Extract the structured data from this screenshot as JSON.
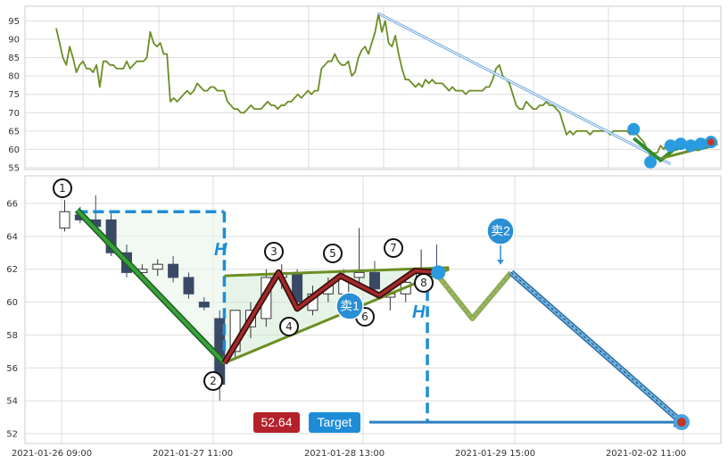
{
  "chart_data": [
    {
      "type": "line",
      "name": "overview",
      "ylim": [
        54.5,
        99
      ],
      "yticks": [
        55,
        60,
        65,
        70,
        75,
        80,
        85,
        90,
        95
      ],
      "x_range": [
        0,
        190
      ],
      "grid": true,
      "series": [
        {
          "color": "#6b8e23",
          "values": [
            93,
            89,
            85,
            83,
            88,
            85,
            81,
            83,
            84,
            82,
            82,
            81,
            83,
            77,
            84,
            84,
            83,
            83,
            82,
            82,
            82,
            84,
            82,
            83,
            84,
            84,
            84,
            85,
            92,
            89,
            88,
            89,
            86,
            86,
            73,
            74,
            73,
            74,
            75,
            76,
            75,
            76,
            78,
            77,
            76,
            76,
            77,
            77,
            76,
            76,
            76,
            73,
            72,
            71,
            71,
            70,
            70,
            71,
            72,
            71,
            71,
            71,
            72,
            73,
            72,
            72,
            71,
            72,
            72,
            73,
            73,
            74,
            75,
            74,
            75,
            76,
            75,
            76,
            76,
            82,
            83,
            84,
            84,
            86,
            84,
            83,
            83,
            84,
            80,
            81,
            85,
            87,
            88,
            86,
            89,
            92,
            97,
            92,
            95,
            89,
            88,
            91,
            86,
            82,
            79,
            79,
            78,
            77,
            78,
            77,
            79,
            78,
            79,
            78,
            78,
            78,
            77,
            76,
            77,
            76,
            76,
            76,
            75,
            76,
            76,
            76,
            76,
            76,
            77,
            77,
            79,
            82,
            83,
            80,
            79,
            78,
            75,
            72,
            71,
            71,
            73,
            72,
            71,
            71,
            72,
            72,
            73,
            72,
            72,
            71,
            70,
            67,
            64,
            65,
            64,
            65,
            65,
            65,
            65,
            64,
            65,
            65,
            65,
            65,
            65,
            64,
            65,
            65,
            65,
            65,
            65,
            64,
            65,
            64,
            63,
            62,
            60,
            58,
            59,
            59,
            61,
            60,
            62,
            62,
            62,
            61,
            62,
            62,
            62,
            61
          ]
        }
      ],
      "annotations": {
        "trend_line": {
          "start": [
            96,
            97
          ],
          "end": [
            183,
            56
          ]
        },
        "markers": [
          [
            172,
            65.5
          ],
          [
            177,
            56.5
          ],
          [
            183,
            61
          ],
          [
            186,
            61.5
          ],
          [
            189,
            61
          ],
          [
            192,
            61.5
          ],
          [
            195,
            62
          ]
        ],
        "mini_pattern": [
          [
            172,
            63
          ],
          [
            180,
            57
          ],
          [
            184,
            60
          ],
          [
            188,
            61
          ],
          [
            191,
            60
          ],
          [
            195,
            61
          ]
        ]
      }
    },
    {
      "type": "candlestick",
      "name": "detail",
      "ylim": [
        51.5,
        67.5
      ],
      "yticks": [
        52,
        54,
        56,
        58,
        60,
        62,
        64,
        66
      ],
      "x_labels": [
        "2021-01-26 09:00",
        "2021-01-27 11:00",
        "2021-01-28 13:00",
        "2021-01-29 15:00",
        "2021-02-02 11:00"
      ],
      "grid": true,
      "candles": [
        {
          "o": 64.5,
          "h": 66.2,
          "l": 64.3,
          "c": 65.5
        },
        {
          "o": 65.3,
          "h": 65.8,
          "l": 64.8,
          "c": 65.0
        },
        {
          "o": 65.0,
          "h": 66.5,
          "l": 64.5,
          "c": 64.6
        },
        {
          "o": 65.0,
          "h": 65.5,
          "l": 62.8,
          "c": 63.0
        },
        {
          "o": 63.0,
          "h": 63.5,
          "l": 61.5,
          "c": 61.8
        },
        {
          "o": 61.8,
          "h": 62.3,
          "l": 61.5,
          "c": 62.0
        },
        {
          "o": 62.0,
          "h": 62.6,
          "l": 61.6,
          "c": 62.3
        },
        {
          "o": 62.3,
          "h": 62.8,
          "l": 61.2,
          "c": 61.5
        },
        {
          "o": 61.5,
          "h": 61.8,
          "l": 60.2,
          "c": 60.5
        },
        {
          "o": 60.0,
          "h": 60.3,
          "l": 59.5,
          "c": 59.7
        },
        {
          "o": 59.0,
          "h": 59.5,
          "l": 54.0,
          "c": 55.0
        },
        {
          "o": 57.0,
          "h": 59.5,
          "l": 56.5,
          "c": 59.5
        },
        {
          "o": 58.5,
          "h": 60.0,
          "l": 57.8,
          "c": 59.5
        },
        {
          "o": 59.0,
          "h": 62.0,
          "l": 58.5,
          "c": 61.5
        },
        {
          "o": 61.5,
          "h": 62.3,
          "l": 60.8,
          "c": 61.8
        },
        {
          "o": 61.8,
          "h": 62.0,
          "l": 59.5,
          "c": 60.0
        },
        {
          "o": 59.5,
          "h": 61.0,
          "l": 59.2,
          "c": 60.5
        },
        {
          "o": 60.5,
          "h": 61.5,
          "l": 60.0,
          "c": 61.0
        },
        {
          "o": 60.5,
          "h": 62.0,
          "l": 60.2,
          "c": 61.5
        },
        {
          "o": 61.5,
          "h": 64.5,
          "l": 61.0,
          "c": 61.8
        },
        {
          "o": 61.8,
          "h": 62.5,
          "l": 60.5,
          "c": 60.8
        },
        {
          "o": 60.3,
          "h": 61.0,
          "l": 59.5,
          "c": 60.5
        },
        {
          "o": 60.5,
          "h": 61.5,
          "l": 60.0,
          "c": 61.2
        },
        {
          "o": 61.2,
          "h": 63.2,
          "l": 61.0,
          "c": 62.0
        },
        {
          "o": 62.0,
          "h": 63.5,
          "l": 61.5,
          "c": 61.8
        }
      ],
      "pattern": {
        "points": [
          {
            "label": "1",
            "x": 1,
            "y": 65.6
          },
          {
            "label": "2",
            "x": 10.5,
            "y": 56.3
          },
          {
            "label": "3",
            "x": 14,
            "y": 61.8
          },
          {
            "label": "4",
            "x": 15.2,
            "y": 59.6
          },
          {
            "label": "5",
            "x": 18,
            "y": 61.6
          },
          {
            "label": "6",
            "x": 20.5,
            "y": 60.4
          },
          {
            "label": "7",
            "x": 22.8,
            "y": 61.9
          },
          {
            "label": "8",
            "x": 24.3,
            "y": 61.8
          }
        ],
        "upper_line": [
          [
            10.5,
            61.6
          ],
          [
            25,
            62.1
          ]
        ],
        "lower_line": [
          [
            10.5,
            56.3
          ],
          [
            25,
            62.0
          ]
        ],
        "projection": [
          [
            24.3,
            61.6
          ],
          [
            26.5,
            59.0
          ],
          [
            29,
            61.8
          ],
          [
            40,
            52.7
          ]
        ],
        "h_level": 65.5,
        "target_y": 52.7
      },
      "labels": {
        "h1": "H",
        "h2": "H",
        "sell1": "卖1",
        "sell2": "卖2",
        "price": "52.64",
        "target": "Target"
      },
      "colors": {
        "price_badge": "#b5212b",
        "target_badge": "#1f8dd6",
        "sell_marker": "#2a8fd4",
        "projection": "#6fa8dc",
        "pattern_line": "#8b1a1a",
        "trend_green": "#2e8b2e",
        "olive": "#6b8e23"
      }
    }
  ]
}
